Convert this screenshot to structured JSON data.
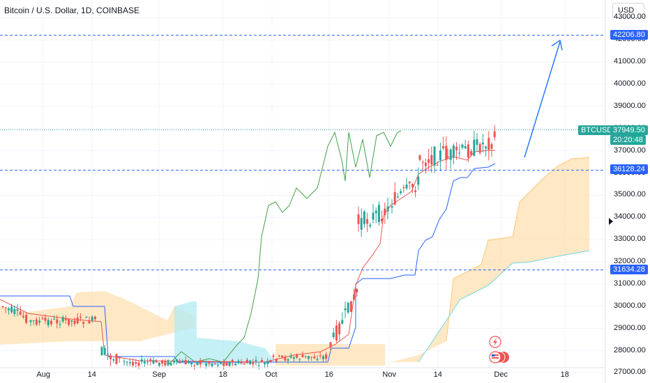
{
  "header": {
    "symbol_title": "Bitcoin / U.S. Dollar, 1D, COINBASE",
    "currency_button": "USD"
  },
  "price_axis": {
    "ticks": [
      "27000.00",
      "28000.00",
      "29000.00",
      "30000.00",
      "31000.00",
      "32000.00",
      "33000.00",
      "34000.00",
      "35000.00",
      "36000.00",
      "37000.00",
      "38000.00",
      "39000.00",
      "40000.00",
      "41000.00",
      "42000.00",
      "43000.00"
    ],
    "levels": [
      {
        "label": "42206.80",
        "value": 42206.8
      },
      {
        "label": "36128.24",
        "value": 36128.24
      },
      {
        "label": "31634.28",
        "value": 31634.28
      }
    ],
    "last_price": {
      "symbol": "BTCUSD",
      "price": "37949.50",
      "countdown": "20:20:48",
      "value": 37949.5
    }
  },
  "time_axis": {
    "ticks": [
      "Aug",
      "14",
      "Sep",
      "18",
      "Oct",
      "16",
      "Nov",
      "14",
      "Dec",
      "18"
    ]
  },
  "colors": {
    "up": "#26a69a",
    "down": "#ef5350",
    "tenkan": "#ef5350",
    "kijun": "#2962ff",
    "lagging": "#43a047",
    "level_line": "#2962ff",
    "cloud_bull": "#ffe0b2",
    "cloud_bear": "#b2ebf2",
    "arrow": "#2979ff"
  },
  "icons": [
    "lightning-icon",
    "us-flag-event-icon",
    "price-scale-arrow-icon"
  ]
}
